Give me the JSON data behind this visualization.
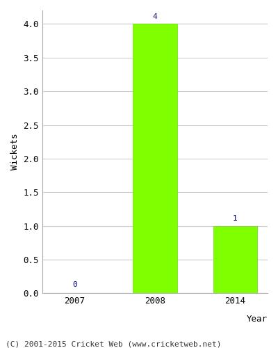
{
  "categories": [
    "2007",
    "2008",
    "2014"
  ],
  "values": [
    0,
    4,
    1
  ],
  "bar_color": "#7FFF00",
  "bar_edgecolor": "#66DD00",
  "ylabel": "Wickets",
  "xlabel": "Year",
  "ylim": [
    0,
    4.2
  ],
  "yticks": [
    0.0,
    0.5,
    1.0,
    1.5,
    2.0,
    2.5,
    3.0,
    3.5,
    4.0
  ],
  "grid_color": "#cccccc",
  "annotation_color": "#000080",
  "annotation_fontsize": 8,
  "tick_fontsize": 9,
  "ylabel_fontsize": 9,
  "xlabel_fontsize": 9,
  "footer_text": "(C) 2001-2015 Cricket Web (www.cricketweb.net)",
  "footer_fontsize": 8,
  "background_color": "#ffffff",
  "axes_background": "#ffffff"
}
